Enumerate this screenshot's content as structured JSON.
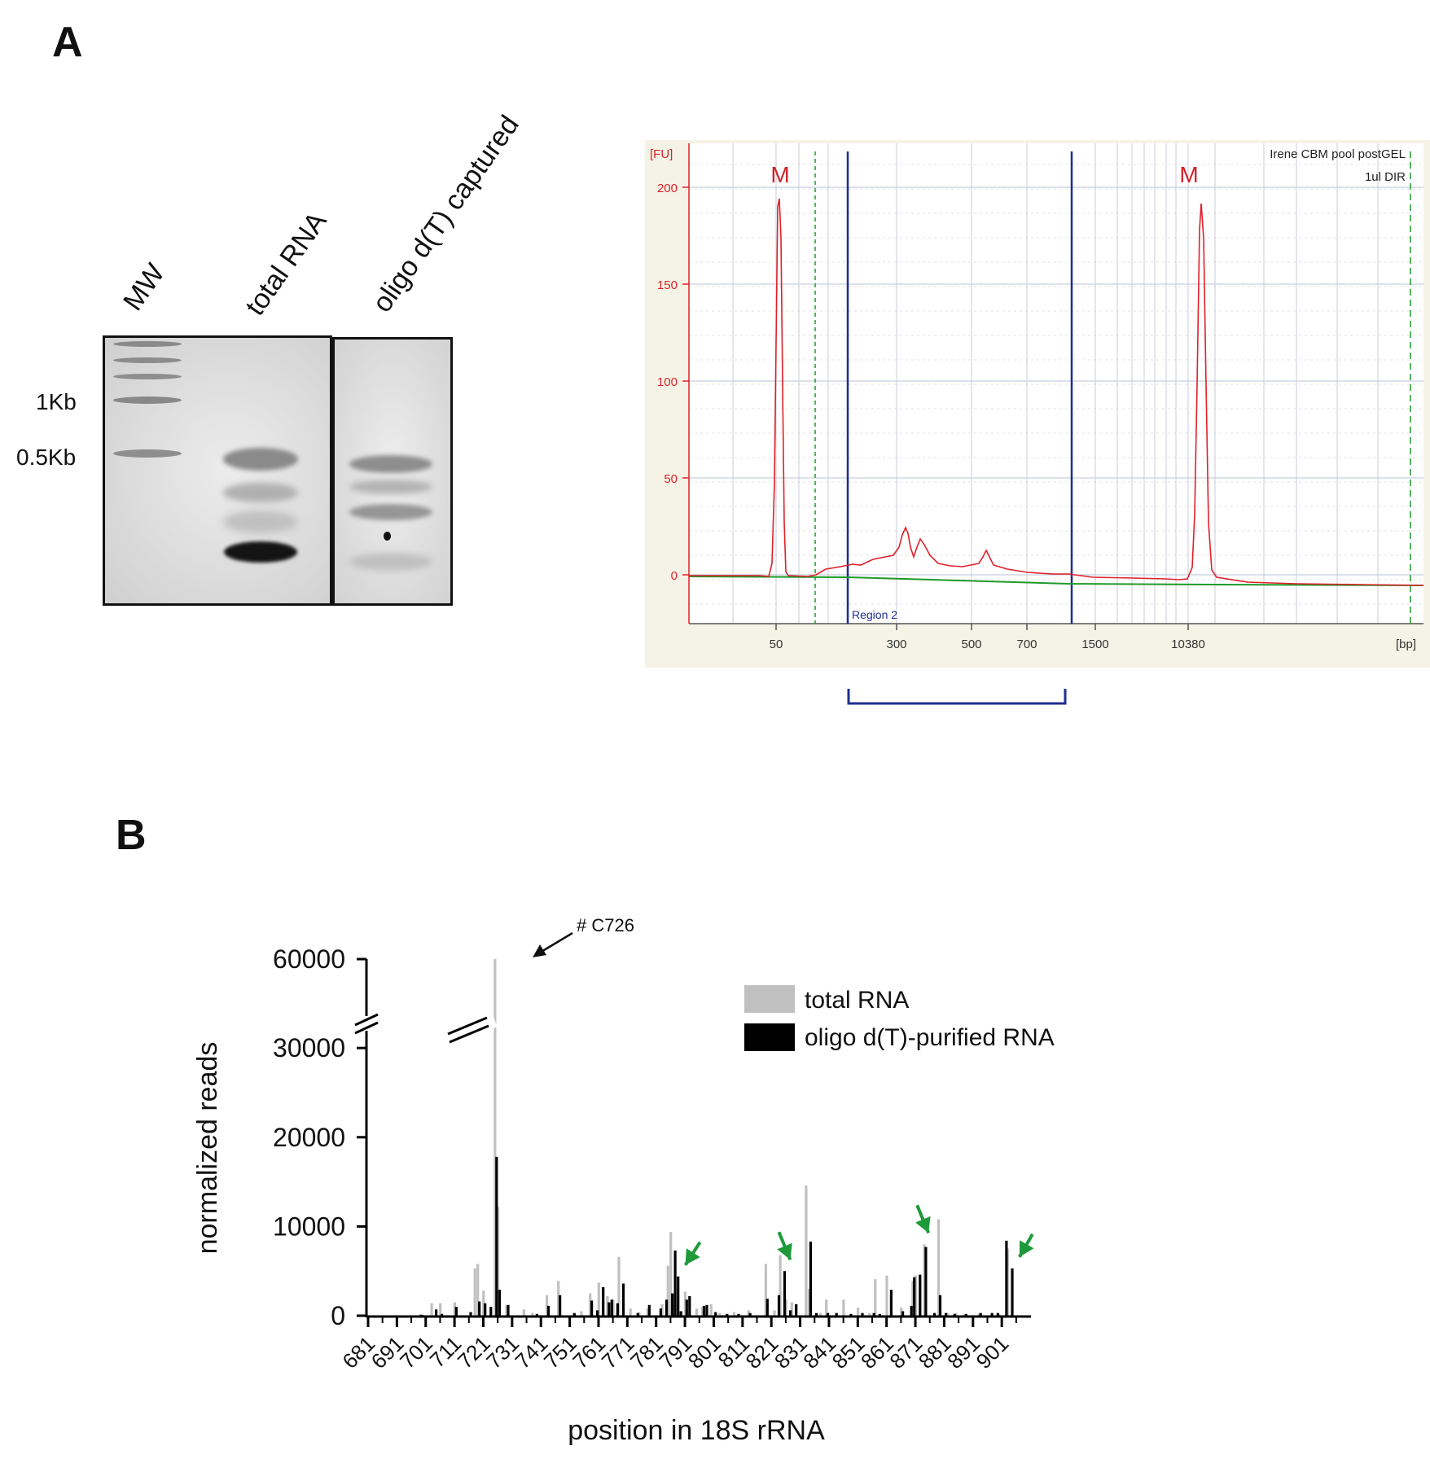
{
  "panel_a": {
    "label": "A",
    "gel": {
      "lanes": [
        "MW",
        "total RNA",
        "oligo d(T) captured"
      ],
      "size_markers": [
        "1Kb",
        "0.5Kb"
      ]
    },
    "bioanalyzer": {
      "y_unit": "[FU]",
      "x_unit": "[bp]",
      "sample_line1": "Irene CBM pool postGEL",
      "sample_line2": "1ul DIR",
      "marker_label": "M",
      "region_label": "Region 2",
      "y_ticks": [
        "200",
        "150",
        "100",
        "50",
        "0"
      ],
      "x_ticks": [
        "50",
        "300",
        "500",
        "700",
        "1500",
        "10380"
      ],
      "colors": {
        "trace": "#e0202a",
        "baseline": "#1f9a2a",
        "region": "#1d2f8f",
        "background": "#f4f3e6"
      }
    }
  },
  "panel_b": {
    "label": "B",
    "annotation": "# C726",
    "chart_data": {
      "type": "bar",
      "title": "",
      "xlabel": "position in 18S rRNA",
      "ylabel": "normalized reads",
      "y_ticks": [
        "0",
        "10000",
        "20000",
        "30000",
        "60000"
      ],
      "y_axis_break": [
        35000,
        58000
      ],
      "x_ticks": [
        "681",
        "691",
        "701",
        "711",
        "721",
        "731",
        "741",
        "751",
        "761",
        "771",
        "781",
        "791",
        "801",
        "811",
        "821",
        "831",
        "841",
        "851",
        "861",
        "871",
        "881",
        "891",
        "901"
      ],
      "x_range": [
        681,
        910
      ],
      "legend_position": "top-right",
      "highlighted_positions": [
        790,
        827,
        875,
        906
      ],
      "series": [
        {
          "name": "total RNA",
          "color": "#c0c0c0",
          "points": [
            [
              699,
              200
            ],
            [
              703,
              1400
            ],
            [
              706,
              1400
            ],
            [
              711,
              1500
            ],
            [
              718,
              5300
            ],
            [
              719,
              5800
            ],
            [
              721,
              2800
            ],
            [
              725,
              60000
            ],
            [
              726,
              12200
            ],
            [
              729,
              1200
            ],
            [
              735,
              700
            ],
            [
              738,
              300
            ],
            [
              743,
              2300
            ],
            [
              747,
              3900
            ],
            [
              755,
              500
            ],
            [
              758,
              2500
            ],
            [
              761,
              3700
            ],
            [
              764,
              2200
            ],
            [
              766,
              1800
            ],
            [
              768,
              6600
            ],
            [
              772,
              800
            ],
            [
              775,
              400
            ],
            [
              778,
              800
            ],
            [
              783,
              1300
            ],
            [
              785,
              5600
            ],
            [
              786,
              9400
            ],
            [
              787,
              2500
            ],
            [
              791,
              2700
            ],
            [
              795,
              800
            ],
            [
              797,
              1000
            ],
            [
              800,
              1300
            ],
            [
              803,
              300
            ],
            [
              808,
              400
            ],
            [
              813,
              600
            ],
            [
              819,
              5800
            ],
            [
              822,
              600
            ],
            [
              824,
              6800
            ],
            [
              826,
              1800
            ],
            [
              828,
              1500
            ],
            [
              833,
              14600
            ],
            [
              834,
              3000
            ],
            [
              838,
              300
            ],
            [
              840,
              1800
            ],
            [
              846,
              1800
            ],
            [
              851,
              900
            ],
            [
              855,
              300
            ],
            [
              857,
              4100
            ],
            [
              861,
              4500
            ],
            [
              866,
              900
            ],
            [
              870,
              3900
            ],
            [
              871,
              4500
            ],
            [
              874,
              8000
            ],
            [
              879,
              10800
            ],
            [
              882,
              300
            ],
            [
              885,
              300
            ],
            [
              888,
              200
            ],
            [
              893,
              200
            ],
            [
              900,
              200
            ],
            [
              903,
              7500
            ]
          ]
        },
        {
          "name": "oligo d(T)-purified RNA",
          "color": "#000000",
          "points": [
            [
              699,
              100
            ],
            [
              704,
              700
            ],
            [
              706,
              200
            ],
            [
              711,
              1000
            ],
            [
              716,
              400
            ],
            [
              719,
              1600
            ],
            [
              721,
              1400
            ],
            [
              723,
              1000
            ],
            [
              725,
              17800
            ],
            [
              726,
              2900
            ],
            [
              729,
              1200
            ],
            [
              739,
              200
            ],
            [
              743,
              1100
            ],
            [
              747,
              2300
            ],
            [
              752,
              300
            ],
            [
              758,
              1700
            ],
            [
              760,
              600
            ],
            [
              762,
              3200
            ],
            [
              764,
              1500
            ],
            [
              765,
              1800
            ],
            [
              767,
              1400
            ],
            [
              769,
              3600
            ],
            [
              774,
              300
            ],
            [
              778,
              1200
            ],
            [
              782,
              800
            ],
            [
              784,
              1800
            ],
            [
              786,
              2500
            ],
            [
              787,
              7300
            ],
            [
              788,
              4400
            ],
            [
              789,
              500
            ],
            [
              791,
              1800
            ],
            [
              792,
              2200
            ],
            [
              797,
              1100
            ],
            [
              798,
              1200
            ],
            [
              801,
              400
            ],
            [
              805,
              200
            ],
            [
              809,
              200
            ],
            [
              813,
              300
            ],
            [
              819,
              1900
            ],
            [
              823,
              2300
            ],
            [
              825,
              5000
            ],
            [
              827,
              600
            ],
            [
              829,
              1300
            ],
            [
              834,
              8300
            ],
            [
              836,
              300
            ],
            [
              840,
              300
            ],
            [
              843,
              300
            ],
            [
              848,
              200
            ],
            [
              852,
              300
            ],
            [
              856,
              300
            ],
            [
              858,
              200
            ],
            [
              862,
              2900
            ],
            [
              866,
              500
            ],
            [
              869,
              1100
            ],
            [
              870,
              4300
            ],
            [
              872,
              4600
            ],
            [
              874,
              7700
            ],
            [
              877,
              300
            ],
            [
              879,
              2300
            ],
            [
              881,
              300
            ],
            [
              884,
              200
            ],
            [
              888,
              200
            ],
            [
              893,
              300
            ],
            [
              897,
              300
            ],
            [
              899,
              300
            ],
            [
              902,
              8400
            ],
            [
              904,
              5300
            ]
          ]
        }
      ]
    }
  }
}
